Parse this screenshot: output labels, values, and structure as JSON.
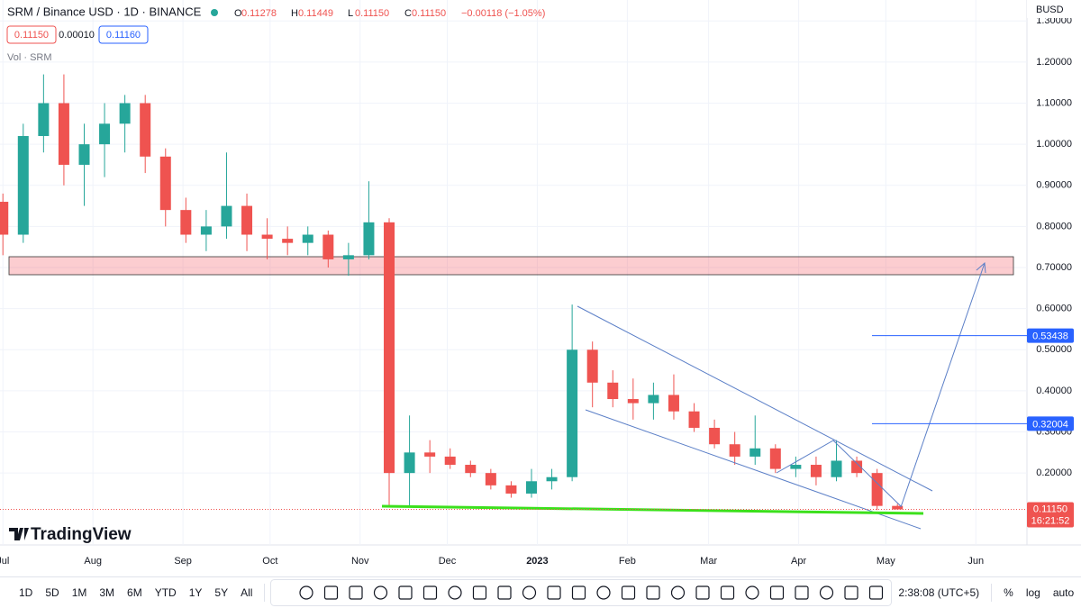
{
  "header": {
    "symbol": "SRM / Binance USD · 1D · BINANCE",
    "ohlc": [
      {
        "key": "O",
        "value": "0.11278"
      },
      {
        "key": "H",
        "value": "0.11449"
      },
      {
        "key": "L",
        "value": "0.11150"
      },
      {
        "key": "C",
        "value": "0.11150"
      }
    ],
    "change": "−0.00118 (−1.05%)",
    "sell": "0.11150",
    "spread": "0.00010",
    "buy": "0.11160",
    "volume_label": "Vol · SRM",
    "currency": "BUSD",
    "brand": "TradingView"
  },
  "chart_data": {
    "type": "candlestick",
    "up_color": "#26a69a",
    "down_color": "#ef5350",
    "x": [
      0,
      7,
      14,
      21,
      28,
      35,
      42,
      49,
      56,
      63,
      70,
      77,
      84,
      91,
      98,
      105,
      112,
      119,
      126,
      133,
      140,
      147,
      154,
      161,
      168,
      175,
      182,
      189,
      196,
      203,
      210,
      217,
      224,
      231,
      238,
      245,
      252,
      259,
      266,
      273,
      280,
      287,
      294,
      301,
      308
    ],
    "open": [
      0.86,
      0.78,
      1.02,
      1.1,
      0.95,
      1.0,
      1.05,
      1.1,
      0.97,
      0.84,
      0.78,
      0.8,
      0.85,
      0.78,
      0.77,
      0.76,
      0.78,
      0.72,
      0.73,
      0.81,
      0.2,
      0.25,
      0.24,
      0.22,
      0.2,
      0.17,
      0.15,
      0.18,
      0.19,
      0.5,
      0.42,
      0.38,
      0.37,
      0.39,
      0.35,
      0.31,
      0.27,
      0.24,
      0.26,
      0.21,
      0.22,
      0.19,
      0.23,
      0.2,
      0.12
    ],
    "high": [
      0.88,
      1.05,
      1.17,
      1.17,
      1.05,
      1.1,
      1.12,
      1.12,
      0.99,
      0.87,
      0.84,
      0.98,
      0.88,
      0.82,
      0.8,
      0.8,
      0.79,
      0.76,
      0.91,
      0.82,
      0.34,
      0.28,
      0.26,
      0.23,
      0.21,
      0.18,
      0.21,
      0.21,
      0.61,
      0.52,
      0.45,
      0.43,
      0.42,
      0.44,
      0.37,
      0.33,
      0.3,
      0.34,
      0.27,
      0.24,
      0.24,
      0.28,
      0.24,
      0.21,
      0.125
    ],
    "low": [
      0.73,
      0.76,
      0.98,
      0.9,
      0.85,
      0.92,
      0.98,
      0.93,
      0.8,
      0.76,
      0.74,
      0.77,
      0.74,
      0.72,
      0.73,
      0.73,
      0.7,
      0.68,
      0.72,
      0.12,
      0.12,
      0.2,
      0.21,
      0.19,
      0.16,
      0.14,
      0.14,
      0.16,
      0.18,
      0.36,
      0.36,
      0.33,
      0.33,
      0.33,
      0.3,
      0.26,
      0.22,
      0.22,
      0.2,
      0.19,
      0.17,
      0.18,
      0.19,
      0.11,
      0.1115
    ],
    "close": [
      0.78,
      1.02,
      1.1,
      0.95,
      1.0,
      1.05,
      1.1,
      0.97,
      0.84,
      0.78,
      0.8,
      0.85,
      0.78,
      0.77,
      0.76,
      0.78,
      0.72,
      0.73,
      0.81,
      0.2,
      0.25,
      0.24,
      0.22,
      0.2,
      0.17,
      0.15,
      0.18,
      0.19,
      0.5,
      0.42,
      0.38,
      0.37,
      0.39,
      0.35,
      0.31,
      0.27,
      0.24,
      0.26,
      0.21,
      0.22,
      0.19,
      0.23,
      0.2,
      0.12,
      0.1115
    ],
    "xlim": [
      -1,
      352.6
    ],
    "ylim": [
      0.025,
      1.351
    ],
    "xticks": [
      {
        "value": 0,
        "label": "Jul"
      },
      {
        "value": 31,
        "label": "Aug"
      },
      {
        "value": 62,
        "label": "Sep"
      },
      {
        "value": 92,
        "label": "Oct"
      },
      {
        "value": 123,
        "label": "Nov"
      },
      {
        "value": 153,
        "label": "Dec"
      },
      {
        "value": 184,
        "label": "2023"
      },
      {
        "value": 215,
        "label": "Feb"
      },
      {
        "value": 243,
        "label": "Mar"
      },
      {
        "value": 274,
        "label": "Apr"
      },
      {
        "value": 304,
        "label": "May"
      },
      {
        "value": 335,
        "label": "Jun"
      }
    ],
    "yticks": [
      {
        "value": 0.2,
        "label": "0.20000"
      },
      {
        "value": 0.3,
        "label": "0.30000"
      },
      {
        "value": 0.4,
        "label": "0.40000"
      },
      {
        "value": 0.5,
        "label": "0.50000"
      },
      {
        "value": 0.6,
        "label": "0.60000"
      },
      {
        "value": 0.7,
        "label": "0.70000"
      },
      {
        "value": 0.8,
        "label": "0.80000"
      },
      {
        "value": 0.9,
        "label": "0.90000"
      },
      {
        "value": 1.0,
        "label": "1.00000"
      },
      {
        "value": 1.1,
        "label": "1.10000"
      },
      {
        "value": 1.2,
        "label": "1.20000"
      },
      {
        "value": 1.3,
        "label": "1.30000"
      }
    ],
    "grid": true,
    "levels": [
      {
        "value": 0.53438,
        "label": "0.53438"
      },
      {
        "value": 0.32004,
        "label": "0.32004"
      }
    ],
    "last_price": {
      "value": 0.1115,
      "label": "0.11150"
    },
    "countdown": "16:21:52"
  },
  "footer": {
    "ranges": [
      "1D",
      "5D",
      "1M",
      "3M",
      "6M",
      "YTD",
      "1Y",
      "5Y",
      "All"
    ],
    "time": "2:38:08 (UTC+5)",
    "options": [
      "%",
      "log",
      "auto"
    ]
  }
}
